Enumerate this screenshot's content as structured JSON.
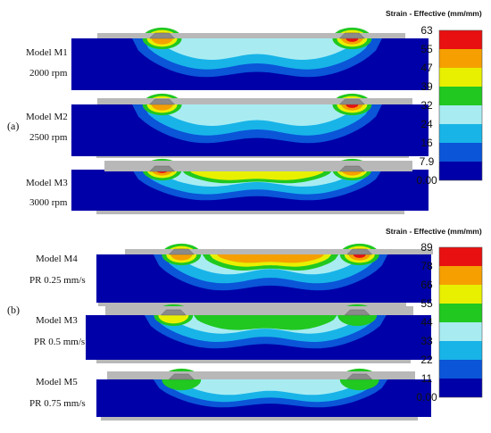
{
  "colorbar_colors": [
    "#0000a8",
    "#0a55d8",
    "#18b4e8",
    "#a8ecf2",
    "#20c820",
    "#e8f000",
    "#f5a000",
    "#e81010"
  ],
  "panel_a": {
    "label": "(a)",
    "colorbar": {
      "title": "Strain - Effective (mm/mm)",
      "ticks": [
        "63",
        "55",
        "47",
        "39",
        "32",
        "24",
        "16",
        "7.9",
        "0.00"
      ]
    },
    "models": [
      {
        "name": "Model M1",
        "param": "2000 rpm"
      },
      {
        "name": "Model M2",
        "param": "2500 rpm"
      },
      {
        "name": "Model M3",
        "param": "3000 rpm"
      }
    ]
  },
  "panel_b": {
    "label": "(b)",
    "colorbar": {
      "title": "Strain - Effective (mm/mm)",
      "ticks": [
        "89",
        "78",
        "66",
        "55",
        "44",
        "33",
        "22",
        "11",
        "0.00"
      ]
    },
    "models": [
      {
        "name": "Model M4",
        "param": "PR 0.25 mm/s"
      },
      {
        "name": "Model M3",
        "param": "PR 0.5 mm/s"
      },
      {
        "name": "Model M5",
        "param": "PR 0.75 mm/s"
      }
    ]
  }
}
